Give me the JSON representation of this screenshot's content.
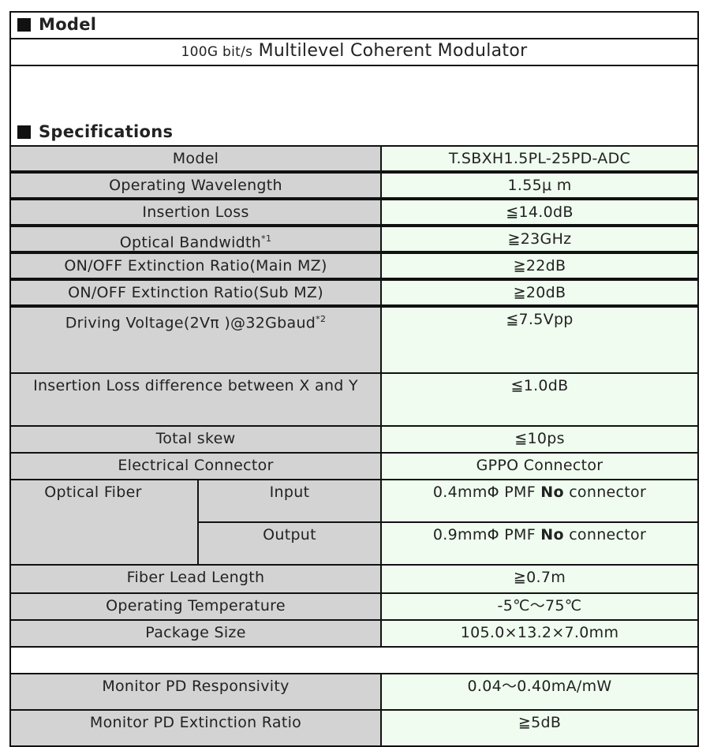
{
  "model_heading": "Model",
  "model_title_prefix": "100G bit/s",
  "model_title": "Multilevel Coherent Modulator",
  "spec_heading": "Specifications",
  "rows": [
    {
      "label": "Model",
      "value": "T.SBXH1.5PL-25PD-ADC"
    },
    {
      "label": "Operating Wavelength",
      "value": "1.55μ m"
    },
    {
      "label": "Insertion Loss",
      "value": "≦14.0dB"
    },
    {
      "label": "Optical Bandwidth",
      "sup": "*1",
      "value": "≧23GHz"
    },
    {
      "label": "ON/OFF Extinction Ratio(Main MZ)",
      "value": "≧22dB"
    },
    {
      "label": "ON/OFF Extinction Ratio(Sub MZ)",
      "value": "≧20dB"
    },
    {
      "label": "Driving Voltage(2Vπ )@32Gbaud",
      "sup": "*2",
      "value": "≦7.5Vpp"
    },
    {
      "label": "Insertion Loss difference between X and Y",
      "value": "≦1.0dB"
    },
    {
      "label": "Total skew",
      "value": "≦10ps"
    },
    {
      "label": "Electrical Connector",
      "value": "GPPO Connector"
    },
    {
      "label": "Fiber Lead Length",
      "value": "≧0.7m"
    },
    {
      "label": "Operating Temperature",
      "value": "-5℃～75℃"
    },
    {
      "label": "Package Size",
      "value": "105.0×13.2×7.0mm"
    },
    {
      "label": "Monitor PD Responsivity",
      "value": "0.04～0.40mA/mW"
    },
    {
      "label": "Monitor PD Extinction Ratio",
      "value": "≧5dB"
    }
  ],
  "fiber": {
    "label": "Optical Fiber",
    "input_label": "Input",
    "input_value_a": "0.4mmΦ PMF",
    "output_label": "Output",
    "output_value_a": "0.9mmΦ PMF",
    "bold": "No",
    "suffix": "connector"
  }
}
